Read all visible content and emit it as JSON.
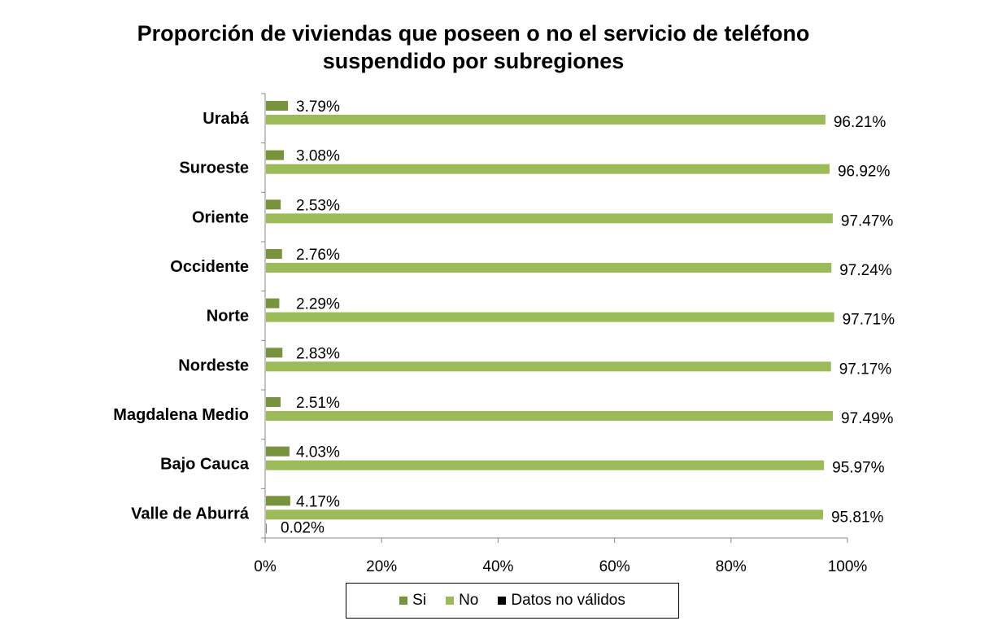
{
  "chart_data": {
    "type": "bar",
    "orientation": "horizontal",
    "title_line1": "Proporción de viviendas que poseen o no el servicio de teléfono",
    "title_line2": "suspendido por subregiones",
    "categories": [
      "Urabá",
      "Suroeste",
      "Oriente",
      "Occidente",
      "Norte",
      "Nordeste",
      "Magdalena Medio",
      "Bajo Cauca",
      "Valle de Aburrá"
    ],
    "series": [
      {
        "name": "Si",
        "color": "#77933C",
        "values": [
          3.79,
          3.08,
          2.53,
          2.76,
          2.29,
          2.83,
          2.51,
          4.03,
          4.17
        ],
        "labels": [
          "3.79%",
          "3.08%",
          "2.53%",
          "2.76%",
          "2.29%",
          "2.83%",
          "2.51%",
          "4.03%",
          "4.17%"
        ]
      },
      {
        "name": "No",
        "color": "#9BBB59",
        "values": [
          96.21,
          96.92,
          97.47,
          97.24,
          97.71,
          97.17,
          97.49,
          95.97,
          95.81
        ],
        "labels": [
          "96.21%",
          "96.92%",
          "97.47%",
          "97.24%",
          "97.71%",
          "97.17%",
          "97.49%",
          "95.97%",
          "95.81%"
        ]
      },
      {
        "name": "Datos no válidos",
        "color": "#000000",
        "values": [
          null,
          null,
          null,
          null,
          null,
          null,
          null,
          null,
          0.02
        ],
        "labels": [
          null,
          null,
          null,
          null,
          null,
          null,
          null,
          null,
          "0.02%"
        ]
      }
    ],
    "xlim": [
      0,
      100
    ],
    "xticks": [
      "0%",
      "20%",
      "40%",
      "60%",
      "80%",
      "100%"
    ],
    "grid": false,
    "legend_position": "bottom"
  }
}
